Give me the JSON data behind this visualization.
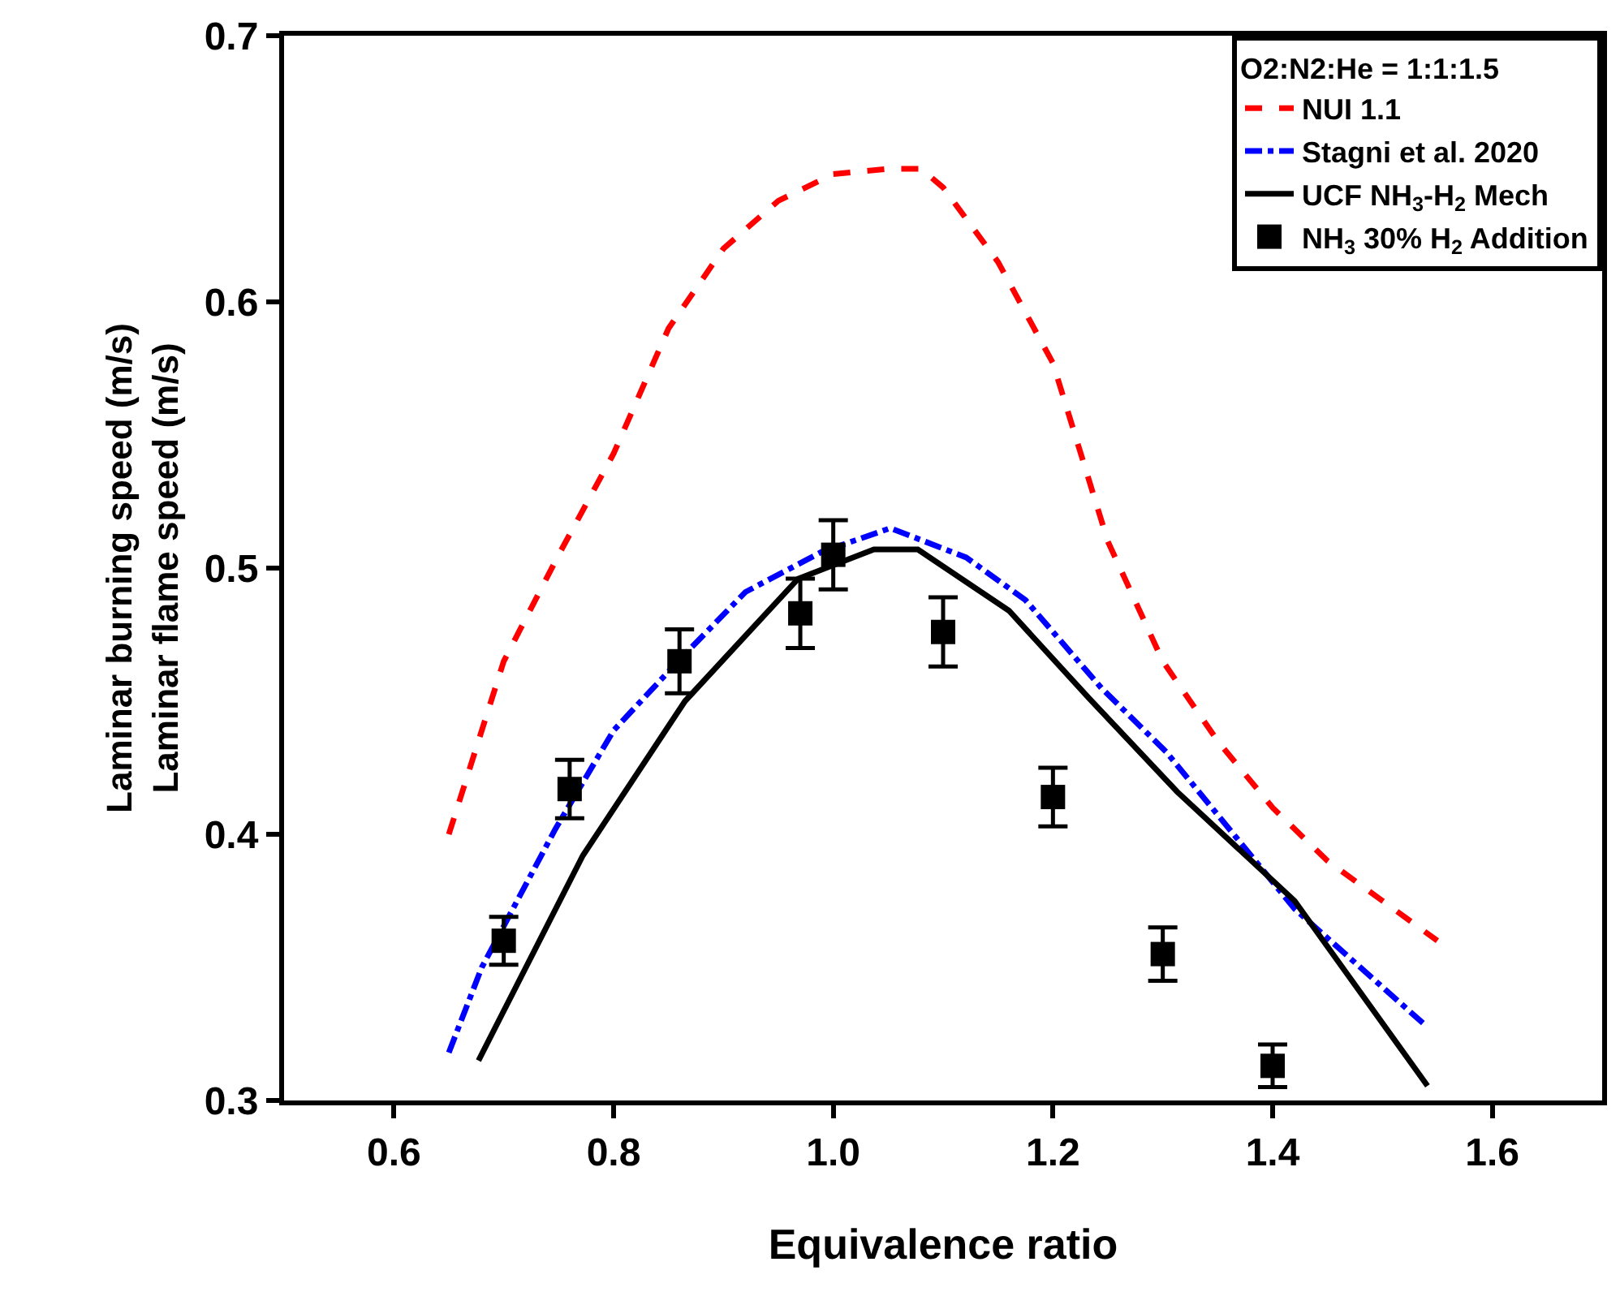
{
  "chart_data": {
    "type": "line",
    "xlabel": "Equivalence ratio",
    "ylabel": "Laminar burning speed (m/s)\nLaminar flame speed (m/s)",
    "legend_title": "O2:N2:He = 1:1:1.5",
    "legend": "top right",
    "xlim": [
      0.5,
      1.7
    ],
    "xticks": [
      0.6,
      0.8,
      {
        "value": 1,
        "label": "1.0"
      },
      1.2,
      1.4,
      1.6
    ],
    "ylim": [
      0.3,
      0.7
    ],
    "yticks": [
      0.3,
      0.4,
      0.5,
      0.6,
      0.7
    ],
    "series": [
      {
        "name": "NUI 1.1",
        "line_style": "dashed",
        "color": "#ff0000",
        "x": [
          0.65,
          0.7,
          0.75,
          0.8,
          0.85,
          0.9,
          0.95,
          1.0,
          1.05,
          1.08,
          1.1,
          1.15,
          1.2,
          1.25,
          1.3,
          1.35,
          1.4,
          1.45,
          1.5,
          1.55
        ],
        "values": [
          0.4,
          0.465,
          0.505,
          0.543,
          0.59,
          0.62,
          0.638,
          0.648,
          0.65,
          0.65,
          0.643,
          0.615,
          0.577,
          0.51,
          0.465,
          0.435,
          0.41,
          0.39,
          0.375,
          0.36
        ]
      },
      {
        "name": "Stagni et al. 2020",
        "line_style": "dashdot",
        "color": "#0000ff",
        "x": [
          0.65,
          0.68,
          0.747,
          0.8,
          0.861,
          0.92,
          0.989,
          1.052,
          1.121,
          1.175,
          1.244,
          1.303,
          1.42,
          1.537
        ],
        "values": [
          0.318,
          0.35,
          0.402,
          0.439,
          0.466,
          0.491,
          0.506,
          0.515,
          0.504,
          0.488,
          0.455,
          0.431,
          0.372,
          0.329
        ]
      },
      {
        "name": "UCF NH$_{3}$-H$_{2}$ Mech",
        "line_style": "solid",
        "color": "#000000",
        "x": [
          0.677,
          0.772,
          0.865,
          0.968,
          1.037,
          1.077,
          1.16,
          1.233,
          1.313,
          1.42,
          1.541
        ],
        "values": [
          0.315,
          0.392,
          0.45,
          0.496,
          0.507,
          0.507,
          0.484,
          0.451,
          0.416,
          0.375,
          0.3055
        ]
      },
      {
        "name": "NH$_{3}$ 30% H$_{2}$ Addition",
        "type": "scatter",
        "marker": "square",
        "color": "#000000",
        "x": [
          0.7,
          0.76,
          0.86,
          0.97,
          1.0,
          1.1,
          1.2,
          1.3,
          1.4
        ],
        "values": [
          0.36,
          0.417,
          0.465,
          0.483,
          0.505,
          0.476,
          0.414,
          0.355,
          0.313
        ],
        "errors": [
          0.009,
          0.011,
          0.012,
          0.013,
          0.013,
          0.013,
          0.011,
          0.01,
          0.008
        ]
      }
    ]
  }
}
